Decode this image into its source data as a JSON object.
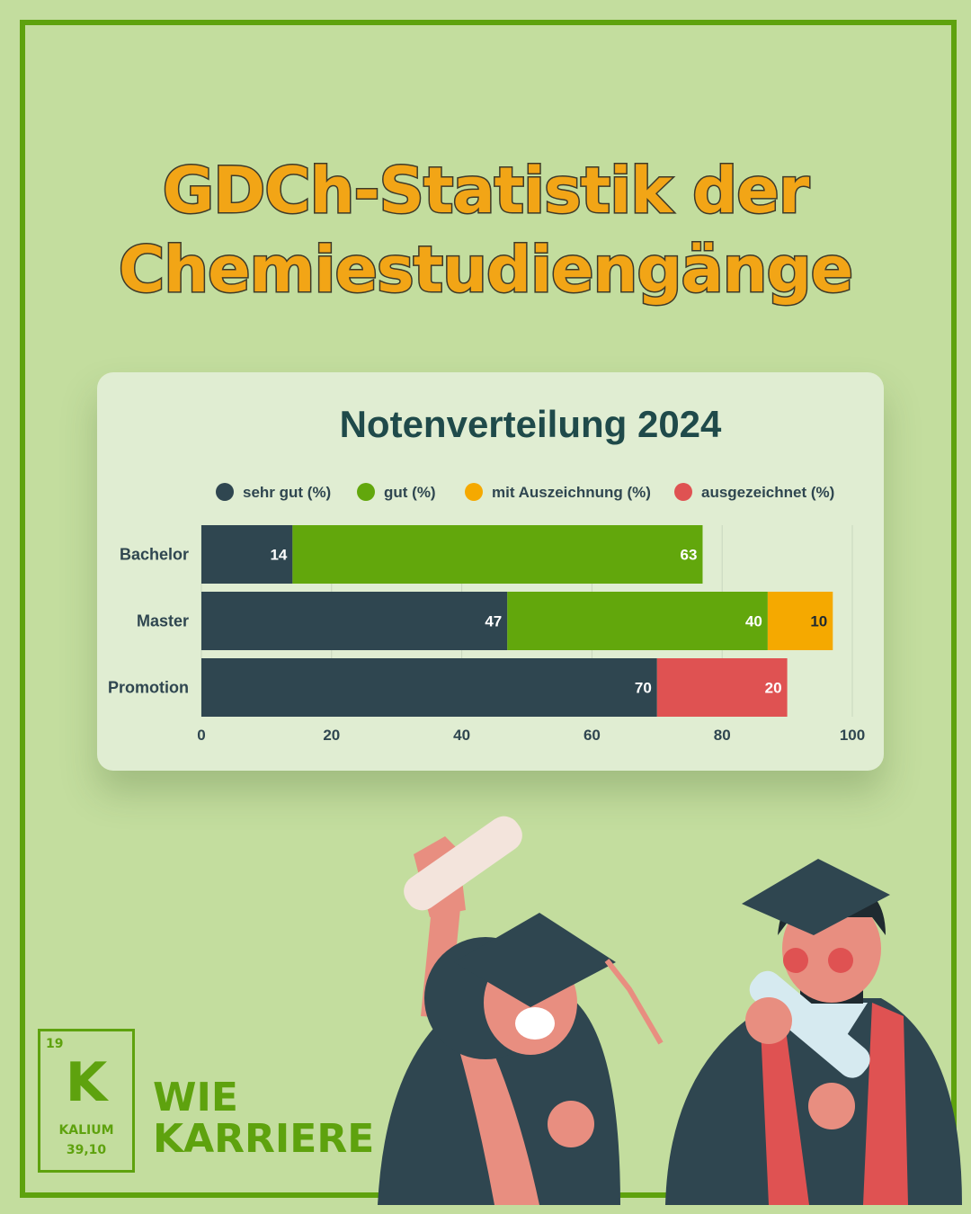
{
  "header": {
    "title_line1": "GDCh-Statistik der",
    "title_line2": "Chemiestudiengänge"
  },
  "colors": {
    "background": "#c3dd9e",
    "frame": "#5ea20e",
    "title_fill": "#f2a516",
    "sehr_gut": "#2f4650",
    "gut": "#62a70c",
    "mit_auszeichnung": "#f5a900",
    "ausgezeichnet": "#df5252"
  },
  "chart_data": {
    "type": "bar",
    "orientation": "horizontal",
    "stacked": true,
    "title": "Notenverteilung 2024",
    "categories": [
      "Bachelor",
      "Master",
      "Promotion"
    ],
    "series": [
      {
        "name": "sehr gut (%)",
        "values": [
          14,
          47,
          70
        ],
        "color": "#2f4650"
      },
      {
        "name": "gut (%)",
        "values": [
          63,
          40,
          0
        ],
        "color": "#62a70c"
      },
      {
        "name": "mit Auszeichnung (%)",
        "values": [
          0,
          10,
          0
        ],
        "color": "#f5a900"
      },
      {
        "name": "ausgezeichnet (%)",
        "values": [
          0,
          0,
          20
        ],
        "color": "#df5252"
      }
    ],
    "xlim": [
      0,
      100
    ],
    "xticks": [
      0,
      20,
      40,
      60,
      80,
      100
    ],
    "grid": true,
    "legend": "top"
  },
  "logo": {
    "atomic_number": "19",
    "symbol": "K",
    "element_name": "KALIUM",
    "atomic_mass": "39,10"
  },
  "brand": {
    "line1": "WIE",
    "line2": "KARRIERE"
  }
}
